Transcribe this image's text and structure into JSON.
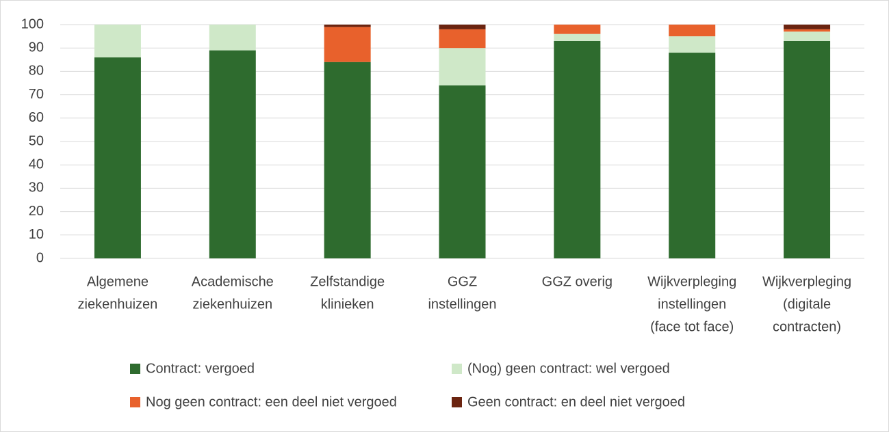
{
  "chart_data": {
    "type": "stacked_bar",
    "categories": [
      [
        "Algemene",
        "ziekenhuizen"
      ],
      [
        "Academische",
        "ziekenhuizen"
      ],
      [
        "Zelfstandige",
        "klinieken"
      ],
      [
        "GGZ",
        "instellingen"
      ],
      [
        "GGZ overig"
      ],
      [
        "Wijkverpleging",
        "instellingen",
        "(face tot face)"
      ],
      [
        "Wijkverpleging",
        "(digitale",
        "contracten)"
      ]
    ],
    "series": [
      {
        "name": "Contract: vergoed",
        "color": "#2e6b2e",
        "values": [
          86,
          89,
          84,
          74,
          93,
          88,
          93
        ]
      },
      {
        "name": "(Nog) geen contract: wel vergoed",
        "color": "#cfe8c8",
        "values": [
          14,
          11,
          0,
          16,
          3,
          7,
          4
        ]
      },
      {
        "name": "Nog geen contract: een deel niet vergoed",
        "color": "#e8612c",
        "values": [
          0,
          0,
          15,
          8,
          4,
          5,
          1
        ]
      },
      {
        "name": "Geen contract: en deel niet vergoed",
        "color": "#6b2410",
        "values": [
          0,
          0,
          1,
          2,
          0,
          0,
          2
        ]
      }
    ],
    "ylim": [
      0,
      100
    ],
    "yticks": [
      0,
      10,
      20,
      30,
      40,
      50,
      60,
      70,
      80,
      90,
      100
    ],
    "grid": true
  }
}
